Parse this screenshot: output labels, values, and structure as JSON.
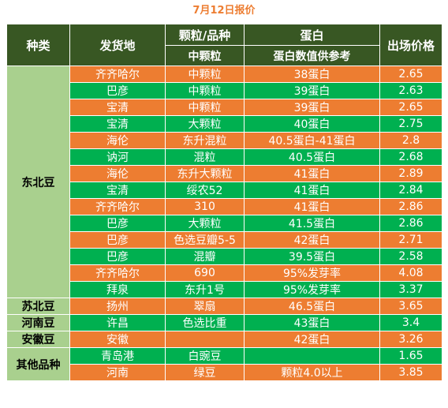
{
  "title": "7月12日报价",
  "headers": {
    "category": "种类",
    "origin": "发货地",
    "variety_top": "颗粒/品种",
    "variety_sub": "中颗粒",
    "protein_top": "蛋白",
    "protein_sub": "蛋白数值供参考",
    "price": "出场价格"
  },
  "groups": [
    {
      "category": "东北豆",
      "rows": [
        {
          "origin": "齐齐哈尔",
          "variety": "中颗粒",
          "protein": "38蛋白",
          "price": "2.65"
        },
        {
          "origin": "巴彦",
          "variety": "中颗粒",
          "protein": "39蛋白",
          "price": "2.63"
        },
        {
          "origin": "宝清",
          "variety": "中颗粒",
          "protein": "39蛋白",
          "price": "2.65"
        },
        {
          "origin": "宝清",
          "variety": "大颗粒",
          "protein": "40蛋白",
          "price": "2.75"
        },
        {
          "origin": "海伦",
          "variety": "东升混粒",
          "protein": "40.5蛋白-41蛋白",
          "price": "2.8"
        },
        {
          "origin": "讷河",
          "variety": "混粒",
          "protein": "40.5蛋白",
          "price": "2.68"
        },
        {
          "origin": "海伦",
          "variety": "东升大颗粒",
          "protein": "41蛋白",
          "price": "2.89"
        },
        {
          "origin": "宝清",
          "variety": "绥农52",
          "protein": "41蛋白",
          "price": "2.84"
        },
        {
          "origin": "齐齐哈尔",
          "variety": "310",
          "protein": "41蛋白",
          "price": "2.86"
        },
        {
          "origin": "巴彦",
          "variety": "大颗粒",
          "protein": "41.5蛋白",
          "price": "2.86"
        },
        {
          "origin": "巴彦",
          "variety": "色选豆瓣5-5",
          "protein": "42蛋白",
          "price": "2.71"
        },
        {
          "origin": "巴彦",
          "variety": "混瓣",
          "protein": "39.5蛋白",
          "price": "2.58"
        },
        {
          "origin": "齐齐哈尔",
          "variety": "690",
          "protein": "95%发芽率",
          "price": "4.08"
        },
        {
          "origin": "拜泉",
          "variety": "东升1号",
          "protein": "95%发芽率",
          "price": "3.37"
        }
      ]
    },
    {
      "category": "苏北豆",
      "rows": [
        {
          "origin": "扬州",
          "variety": "翠扇",
          "protein": "46.5蛋白",
          "price": "3.65"
        }
      ]
    },
    {
      "category": "河南豆",
      "rows": [
        {
          "origin": "许昌",
          "variety": "色选比重",
          "protein": "43蛋白",
          "price": "3.4"
        }
      ]
    },
    {
      "category": "安徽豆",
      "rows": [
        {
          "origin": "安徽",
          "variety": "",
          "protein": "42蛋白",
          "price": "3.26"
        }
      ]
    },
    {
      "category": "其他品种",
      "rows": [
        {
          "origin": "青岛港",
          "variety": "白豌豆",
          "protein": "",
          "price": "1.65"
        },
        {
          "origin": "河南",
          "variety": "绿豆",
          "protein": "颗粒4.0以上",
          "price": "3.85"
        }
      ]
    }
  ],
  "colors": {
    "header": "#385723",
    "category": "#A9D08E",
    "orange": "#ED7D31",
    "green": "#00B050",
    "title": "#ED7D31"
  }
}
